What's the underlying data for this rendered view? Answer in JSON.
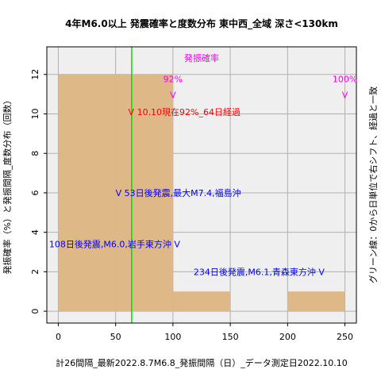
{
  "chart_data": {
    "type": "bar",
    "title": "4年M6.0以上 発震確率と度数分布 東中西_全域 深さ<130km",
    "xlabel": "計26間隔_最新2022.8.7M6.8_発振間隔（日）_データ測定日2022.10.10",
    "ylabel": "発振確率（%）と発振間隔_度数分布（回数）",
    "right_label": "グリーン線：0から日単位で右シフト、経過と一致",
    "xlim": [
      -10,
      260
    ],
    "ylim": [
      -0.6,
      13.4
    ],
    "x_ticks": [
      "0",
      "50",
      "100",
      "150",
      "200",
      "250"
    ],
    "y_ticks": [
      "0",
      "2",
      "4",
      "6",
      "8",
      "10",
      "12"
    ],
    "grid": true,
    "bin_width": 50,
    "bars": [
      {
        "x_start": 0,
        "x_end": 50,
        "value": 12
      },
      {
        "x_start": 50,
        "x_end": 100,
        "value": 12
      },
      {
        "x_start": 100,
        "x_end": 150,
        "value": 1
      },
      {
        "x_start": 150,
        "x_end": 200,
        "value": 0
      },
      {
        "x_start": 200,
        "x_end": 250,
        "value": 1
      }
    ],
    "green_line_x": 64,
    "probability_label": "発振確率",
    "probability_markers": [
      {
        "x": 100,
        "pct": "92%",
        "mark": "V"
      },
      {
        "x": 250,
        "pct": "100%",
        "mark": "V"
      }
    ],
    "annotations": [
      {
        "text": "V 10.10現在92%_64日経過",
        "x": 61,
        "y": 10.1,
        "color": "#ff0000"
      },
      {
        "text": "V 53日後発震,最大M7.4,福島沖",
        "x": 50,
        "y": 6.0,
        "color": "#0000ff"
      },
      {
        "text": "108日後発震,M6.0,岩手東方沖 V",
        "x": -8,
        "y": 3.4,
        "color": "#0000ff"
      },
      {
        "text": "234日後発震,M6.1,青森東方沖 V",
        "x": 118,
        "y": 2.0,
        "color": "#0000ff"
      }
    ],
    "colors": {
      "bar": "#deb887",
      "green": "#00dd00",
      "prob": "#ff00ff",
      "grid": "#b0b0b0",
      "plot_bg": "#efefef"
    }
  }
}
